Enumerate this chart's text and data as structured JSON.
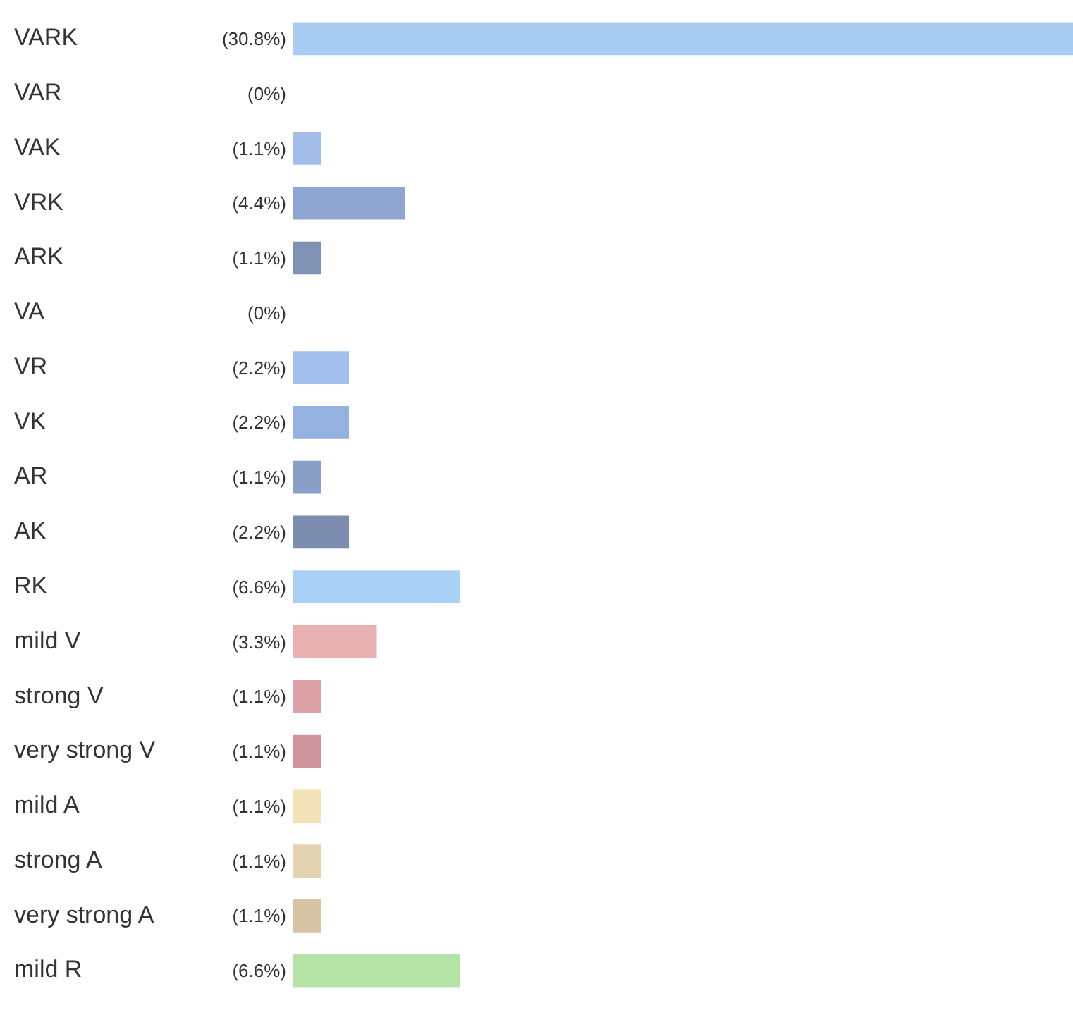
{
  "chart_data": {
    "type": "bar",
    "orientation": "horizontal",
    "categories": [
      "VARK",
      "VAR",
      "VAK",
      "VRK",
      "ARK",
      "VA",
      "VR",
      "VK",
      "AR",
      "AK",
      "RK",
      "mild V",
      "strong V",
      "very strong V",
      "mild A",
      "strong A",
      "very strong A",
      "mild R"
    ],
    "values": [
      30.8,
      0,
      1.1,
      4.4,
      1.1,
      0,
      2.2,
      2.2,
      1.1,
      2.2,
      6.6,
      3.3,
      1.1,
      1.1,
      1.1,
      1.1,
      1.1,
      6.6
    ],
    "value_labels": [
      "(30.8%)",
      "(0%)",
      "(1.1%)",
      "(4.4%)",
      "(1.1%)",
      "(0%)",
      "(2.2%)",
      "(2.2%)",
      "(1.1%)",
      "(2.2%)",
      "(6.6%)",
      "(3.3%)",
      "(1.1%)",
      "(1.1%)",
      "(1.1%)",
      "(1.1%)",
      "(1.1%)",
      "(6.6%)"
    ],
    "colors": [
      "#a9cdf2",
      "#a8c6ee",
      "#a2bdea",
      "#8fa6d2",
      "#7f91b5",
      "#b4d8f8",
      "#a3c0ec",
      "#94b1e0",
      "#8a9fc8",
      "#7c8db0",
      "#a9d0f5",
      "#e8b0b0",
      "#dda0a4",
      "#d0959a",
      "#f3e2b5",
      "#e3d3b0",
      "#d6c4a5",
      "#b5e3a5"
    ],
    "grid": false,
    "legend": false
  }
}
